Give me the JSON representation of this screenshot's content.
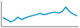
{
  "chart_data": {
    "type": "line",
    "x": [
      0,
      1,
      2,
      3,
      4,
      5,
      6,
      7,
      8,
      9,
      10,
      11,
      12,
      13,
      14,
      15,
      16,
      17,
      18,
      19,
      20
    ],
    "values": [
      28,
      22,
      15,
      20,
      30,
      22,
      28,
      32,
      35,
      38,
      42,
      38,
      40,
      44,
      46,
      43,
      47,
      62,
      48,
      40,
      35
    ],
    "color": "#1899ce",
    "xlim": [
      -0.5,
      20.5
    ],
    "ylim": [
      0,
      80
    ],
    "tick_labels": false
  }
}
